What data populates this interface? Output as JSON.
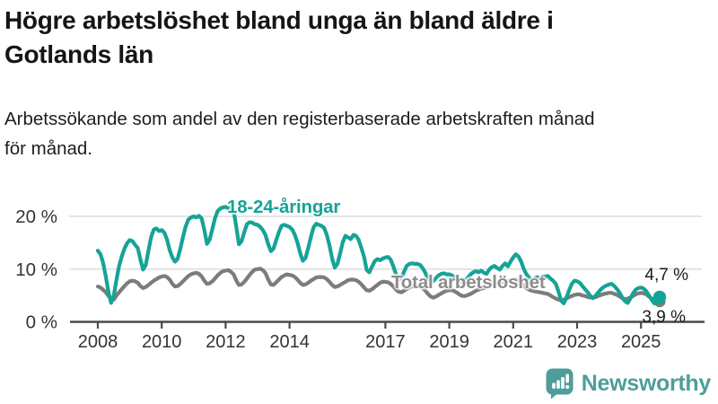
{
  "header": {
    "title_line1": "Högre arbetslöshet bland unga än bland äldre i",
    "title_line2": "Gotlands län",
    "subtitle_line1": "Arbetssökande som andel av den registerbaserade arbetskraften månad",
    "subtitle_line2": "för månad."
  },
  "chart_data": {
    "type": "line",
    "title": "Högre arbetslöshet bland unga än bland äldre i Gotlands län",
    "subtitle": "Arbetssökande som andel av den registerbaserade arbetskraften månad för månad.",
    "x_unit": "month",
    "start": "2008-01",
    "end": "2025-08",
    "ylim": [
      0,
      22
    ],
    "grid": "horizontal",
    "legend_position": "inline",
    "y_ticks": [
      {
        "label": "20 %",
        "value": 20
      },
      {
        "label": "10 %",
        "value": 10
      },
      {
        "label": "0 %",
        "value": 0
      }
    ],
    "x_ticks": [
      "2008",
      "2010",
      "2012",
      "2014",
      "2017",
      "2019",
      "2021",
      "2023",
      "2025"
    ],
    "axis_color": "#4A4A4A",
    "grid_color": "#DCDCDC",
    "series": [
      {
        "name": "18-24-åringar",
        "color": "#16A397",
        "end_label": "4,7 %",
        "end_value": 4.7,
        "values": [
          13.5,
          12.8,
          11.2,
          8.6,
          5.6,
          3.6,
          5.0,
          8.0,
          10.6,
          12.4,
          13.9,
          14.9,
          15.5,
          15.3,
          14.6,
          14.0,
          11.8,
          9.9,
          10.8,
          13.5,
          16.0,
          17.5,
          17.7,
          17.2,
          17.4,
          16.9,
          15.6,
          13.6,
          12.2,
          11.4,
          12.0,
          13.9,
          16.1,
          18.1,
          19.4,
          19.8,
          20.0,
          19.8,
          20.1,
          19.6,
          17.4,
          14.8,
          15.6,
          17.6,
          19.6,
          21.0,
          21.5,
          21.7,
          21.8,
          21.5,
          21.6,
          21.1,
          18.0,
          14.7,
          15.3,
          17.0,
          18.5,
          18.9,
          18.8,
          18.5,
          18.4,
          18.0,
          17.4,
          16.4,
          14.7,
          13.4,
          13.9,
          15.5,
          17.0,
          18.2,
          18.4,
          18.2,
          18.0,
          17.5,
          16.5,
          15.0,
          13.0,
          11.6,
          12.1,
          14.0,
          16.0,
          17.9,
          18.6,
          18.4,
          18.2,
          17.8,
          16.5,
          14.5,
          12.0,
          10.3,
          11.0,
          13.0,
          15.1,
          16.3,
          16.0,
          15.7,
          16.5,
          16.3,
          15.5,
          14.0,
          12.3,
          9.8,
          9.4,
          10.5,
          11.5,
          11.9,
          11.7,
          12.0,
          12.2,
          12.3,
          11.8,
          10.5,
          9.0,
          8.0,
          8.3,
          9.5,
          10.6,
          11.0,
          11.1,
          11.0,
          11.0,
          10.8,
          10.2,
          9.3,
          8.2,
          7.5,
          7.7,
          8.3,
          8.8,
          9.1,
          9.2,
          9.0,
          9.0,
          8.8,
          8.4,
          8.0,
          7.7,
          7.6,
          7.9,
          8.4,
          9.0,
          9.4,
          9.6,
          9.4,
          9.7,
          9.3,
          9.1,
          9.9,
          10.4,
          10.6,
          10.2,
          9.9,
          10.6,
          11.1,
          10.5,
          11.4,
          12.2,
          12.8,
          12.4,
          11.4,
          10.0,
          9.0,
          8.4,
          7.9,
          8.2,
          8.5,
          8.2,
          8.6,
          8.6,
          8.7,
          8.2,
          7.8,
          7.2,
          5.8,
          4.0,
          3.5,
          4.6,
          6.0,
          7.2,
          7.8,
          7.7,
          7.4,
          6.8,
          6.2,
          5.6,
          4.9,
          4.5,
          5.0,
          5.6,
          6.2,
          6.6,
          6.9,
          7.1,
          7.2,
          6.8,
          6.2,
          5.5,
          4.6,
          3.9,
          3.6,
          4.4,
          5.4,
          6.1,
          6.4,
          6.5,
          6.3,
          5.8,
          5.0,
          4.2,
          3.5,
          3.6,
          4.7
        ]
      },
      {
        "name": "Total arbetslöshet",
        "color": "#7C7C7C",
        "end_label": "3,9 %",
        "end_value": 3.9,
        "values": [
          6.7,
          6.5,
          6.1,
          5.6,
          4.9,
          4.3,
          4.2,
          5.0,
          5.6,
          6.2,
          6.8,
          7.3,
          7.7,
          7.8,
          7.7,
          7.4,
          6.8,
          6.4,
          6.6,
          7.0,
          7.4,
          7.8,
          8.1,
          8.4,
          8.6,
          8.7,
          8.5,
          8.0,
          7.2,
          6.7,
          6.8,
          7.2,
          7.7,
          8.2,
          8.7,
          9.0,
          9.2,
          9.3,
          9.1,
          8.6,
          7.8,
          7.2,
          7.3,
          7.7,
          8.2,
          8.8,
          9.3,
          9.6,
          9.7,
          9.8,
          9.5,
          9.0,
          7.8,
          7.0,
          7.1,
          7.6,
          8.2,
          8.9,
          9.5,
          9.9,
          10.0,
          10.1,
          9.8,
          9.2,
          8.0,
          7.1,
          7.0,
          7.5,
          8.0,
          8.5,
          8.8,
          9.0,
          8.9,
          8.8,
          8.5,
          8.0,
          7.4,
          7.0,
          7.1,
          7.4,
          7.8,
          8.1,
          8.4,
          8.5,
          8.5,
          8.4,
          8.1,
          7.6,
          7.0,
          6.6,
          6.7,
          7.0,
          7.3,
          7.6,
          7.9,
          8.0,
          8.0,
          7.9,
          7.6,
          7.1,
          6.5,
          6.0,
          5.9,
          6.2,
          6.6,
          7.0,
          7.4,
          7.6,
          7.6,
          7.5,
          7.2,
          6.7,
          6.1,
          5.7,
          5.6,
          5.9,
          6.2,
          6.5,
          6.7,
          6.8,
          6.8,
          6.7,
          6.4,
          5.9,
          5.3,
          4.8,
          4.6,
          4.8,
          5.1,
          5.4,
          5.7,
          5.9,
          6.0,
          6.0,
          5.8,
          5.5,
          5.1,
          4.9,
          4.9,
          5.1,
          5.3,
          5.6,
          5.9,
          6.1,
          6.3,
          6.4,
          6.6,
          7.1,
          7.4,
          7.4,
          7.4,
          7.5,
          7.6,
          7.6,
          7.7,
          7.9,
          8.0,
          8.0,
          7.8,
          7.4,
          6.9,
          6.4,
          6.1,
          5.9,
          5.8,
          5.7,
          5.6,
          5.5,
          5.4,
          5.3,
          5.0,
          4.7,
          4.4,
          4.2,
          4.1,
          4.2,
          4.4,
          4.7,
          4.9,
          5.1,
          5.2,
          5.2,
          5.0,
          4.9,
          4.7,
          4.6,
          4.6,
          4.7,
          4.9,
          5.1,
          5.3,
          5.4,
          5.5,
          5.5,
          5.3,
          5.1,
          4.8,
          4.5,
          4.3,
          4.4,
          4.6,
          4.9,
          5.2,
          5.4,
          5.5,
          5.4,
          5.2,
          4.8,
          4.4,
          4.0,
          3.7,
          3.9
        ]
      }
    ]
  },
  "footer": {
    "brand": "Newsworthy",
    "logo_color": "#4F9D9B"
  }
}
